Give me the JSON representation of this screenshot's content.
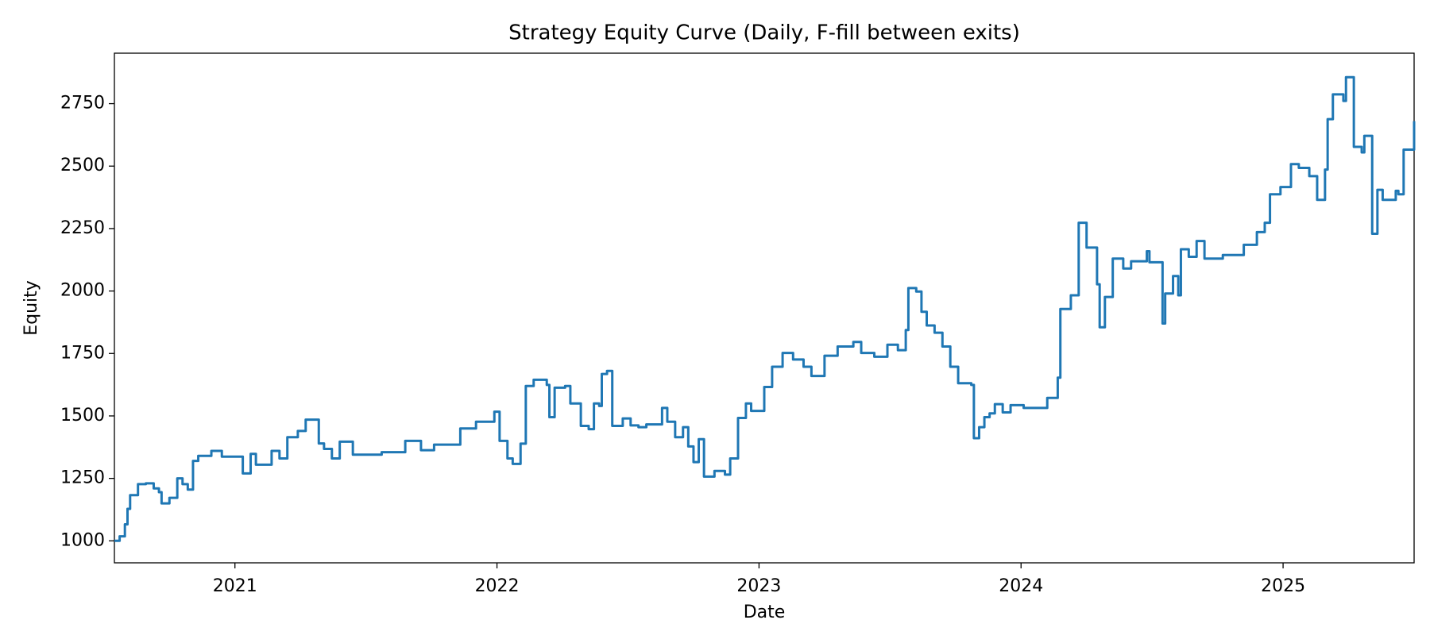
{
  "chart_data": {
    "type": "line",
    "title": "Strategy Equity Curve (Daily, F-fill between exits)",
    "xlabel": "Date",
    "ylabel": "Equity",
    "drawstyle": "steps-post",
    "grid": false,
    "xlim": [
      2020.54,
      2025.5
    ],
    "xticks": [
      2021,
      2022,
      2023,
      2024,
      2025
    ],
    "ylim": [
      912,
      2952
    ],
    "yticks": [
      1000,
      1250,
      1500,
      1750,
      2000,
      2250,
      2500,
      2750
    ],
    "series": [
      {
        "name": "Equity",
        "color": "#1f77b4",
        "x": [
          2020.54,
          2020.56,
          2020.58,
          2020.59,
          2020.6,
          2020.63,
          2020.66,
          2020.69,
          2020.71,
          2020.72,
          2020.75,
          2020.78,
          2020.8,
          2020.82,
          2020.84,
          2020.86,
          2020.91,
          2020.95,
          2021.03,
          2021.06,
          2021.08,
          2021.14,
          2021.17,
          2021.2,
          2021.24,
          2021.27,
          2021.32,
          2021.34,
          2021.37,
          2021.4,
          2021.45,
          2021.56,
          2021.65,
          2021.71,
          2021.76,
          2021.86,
          2021.92,
          2021.99,
          2022.01,
          2022.04,
          2022.06,
          2022.09,
          2022.11,
          2022.14,
          2022.19,
          2022.2,
          2022.22,
          2022.26,
          2022.28,
          2022.32,
          2022.35,
          2022.37,
          2022.39,
          2022.4,
          2022.42,
          2022.44,
          2022.48,
          2022.51,
          2022.54,
          2022.57,
          2022.62,
          2022.63,
          2022.65,
          2022.68,
          2022.71,
          2022.73,
          2022.75,
          2022.77,
          2022.79,
          2022.83,
          2022.87,
          2022.89,
          2022.92,
          2022.95,
          2022.97,
          2023.02,
          2023.05,
          2023.09,
          2023.13,
          2023.17,
          2023.2,
          2023.25,
          2023.3,
          2023.36,
          2023.39,
          2023.44,
          2023.49,
          2023.53,
          2023.56,
          2023.57,
          2023.6,
          2023.62,
          2023.64,
          2023.67,
          2023.7,
          2023.73,
          2023.76,
          2023.81,
          2023.82,
          2023.84,
          2023.86,
          2023.88,
          2023.9,
          2023.93,
          2023.96,
          2024.01,
          2024.1,
          2024.14,
          2024.15,
          2024.19,
          2024.22,
          2024.25,
          2024.29,
          2024.3,
          2024.32,
          2024.35,
          2024.39,
          2024.42,
          2024.48,
          2024.49,
          2024.54,
          2024.55,
          2024.58,
          2024.6,
          2024.61,
          2024.64,
          2024.67,
          2024.7,
          2024.77,
          2024.85,
          2024.9,
          2024.93,
          2024.95,
          2024.99,
          2025.03,
          2025.06,
          2025.1,
          2025.13,
          2025.16,
          2025.17,
          2025.19,
          2025.23,
          2025.24,
          2025.27,
          2025.3,
          2025.31,
          2025.34,
          2025.36,
          2025.38,
          2025.43,
          2025.44,
          2025.46,
          2025.5
        ],
        "values": [
          1000,
          1018,
          1066,
          1128,
          1183,
          1227,
          1230,
          1210,
          1195,
          1150,
          1172,
          1250,
          1227,
          1205,
          1320,
          1340,
          1360,
          1337,
          1270,
          1348,
          1305,
          1360,
          1330,
          1415,
          1440,
          1485,
          1390,
          1368,
          1330,
          1397,
          1345,
          1355,
          1400,
          1363,
          1385,
          1450,
          1477,
          1517,
          1400,
          1330,
          1308,
          1389,
          1620,
          1645,
          1624,
          1495,
          1613,
          1620,
          1550,
          1460,
          1447,
          1550,
          1540,
          1668,
          1680,
          1460,
          1490,
          1462,
          1455,
          1466,
          1466,
          1532,
          1477,
          1415,
          1455,
          1378,
          1315,
          1407,
          1257,
          1280,
          1265,
          1330,
          1492,
          1550,
          1520,
          1616,
          1697,
          1752,
          1726,
          1697,
          1660,
          1741,
          1778,
          1796,
          1752,
          1737,
          1785,
          1763,
          1844,
          2012,
          1998,
          1917,
          1862,
          1833,
          1778,
          1697,
          1631,
          1624,
          1411,
          1455,
          1495,
          1510,
          1547,
          1514,
          1543,
          1532,
          1572,
          1653,
          1928,
          1983,
          2273,
          2174,
          2027,
          1855,
          1976,
          2130,
          2090,
          2119,
          2159,
          2115,
          1870,
          1990,
          2060,
          1983,
          2167,
          2137,
          2200,
          2130,
          2144,
          2185,
          2236,
          2273,
          2387,
          2416,
          2508,
          2493,
          2460,
          2365,
          2486,
          2688,
          2787,
          2761,
          2856,
          2577,
          2555,
          2621,
          2229,
          2405,
          2365,
          2401,
          2387,
          2566,
          2680
        ]
      }
    ]
  }
}
